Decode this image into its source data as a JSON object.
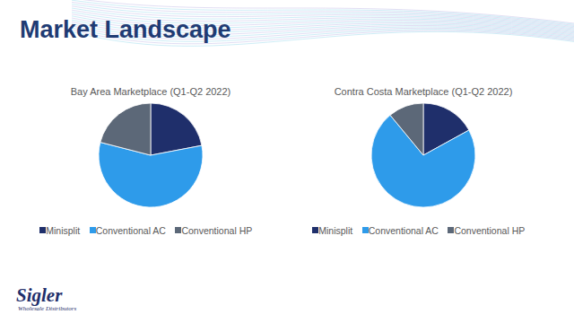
{
  "title": "Market Landscape",
  "chart_data": [
    {
      "type": "pie",
      "title": "Bay Area Marketplace (Q1-Q2 2022)",
      "categories": [
        "Minisplit",
        "Conventional AC",
        "Conventional HP"
      ],
      "values": [
        22,
        57,
        21
      ],
      "colors": [
        "#1f2f6b",
        "#2e9bea",
        "#5c6878"
      ],
      "legend": "bottom"
    },
    {
      "type": "pie",
      "title": "Contra Costa Marketplace (Q1-Q2 2022)",
      "categories": [
        "Minisplit",
        "Conventional AC",
        "Conventional HP"
      ],
      "values": [
        17,
        72,
        11
      ],
      "colors": [
        "#1f2f6b",
        "#2e9bea",
        "#5c6878"
      ],
      "legend": "bottom"
    }
  ],
  "logo": {
    "name": "Sigler",
    "tagline": "Wholesale Distributors"
  }
}
